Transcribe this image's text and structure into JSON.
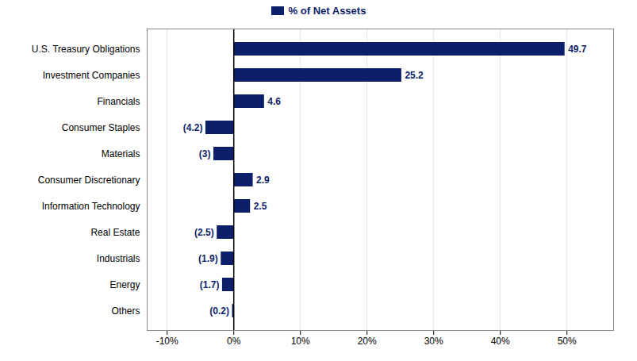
{
  "chart_data": {
    "type": "bar",
    "orientation": "horizontal",
    "categories": [
      "U.S. Treasury Obligations",
      "Investment Companies",
      "Financials",
      "Consumer Staples",
      "Materials",
      "Consumer Discretionary",
      "Information Technology",
      "Real Estate",
      "Industrials",
      "Energy",
      "Others"
    ],
    "values": [
      49.7,
      25.2,
      4.6,
      -4.2,
      -3.0,
      2.9,
      2.5,
      -2.5,
      -1.9,
      -1.7,
      -0.2
    ],
    "value_labels": [
      "49.7",
      "25.2",
      "4.6",
      "(4.2)",
      "(3)",
      "2.9",
      "2.5",
      "(2.5)",
      "(1.9)",
      "(1.7)",
      "(0.2)"
    ],
    "data_labels": true,
    "series": [
      {
        "name": "% of Net Assets",
        "color": "#0d1f6b",
        "values": [
          49.7,
          25.2,
          4.6,
          -4.2,
          -3.0,
          2.9,
          2.5,
          -2.5,
          -1.9,
          -1.7,
          -0.2
        ]
      }
    ],
    "color": "#0d1f6b",
    "legend": "top",
    "xlim": [
      -13,
      57
    ],
    "xticks": [
      {
        "value": -10,
        "label": "-10%"
      },
      {
        "value": 0,
        "label": "0%"
      },
      {
        "value": 10,
        "label": "10%"
      },
      {
        "value": 20,
        "label": "20%"
      },
      {
        "value": 30,
        "label": "30%"
      },
      {
        "value": 40,
        "label": "40%"
      },
      {
        "value": 50,
        "label": "50%"
      }
    ],
    "grid": true
  }
}
